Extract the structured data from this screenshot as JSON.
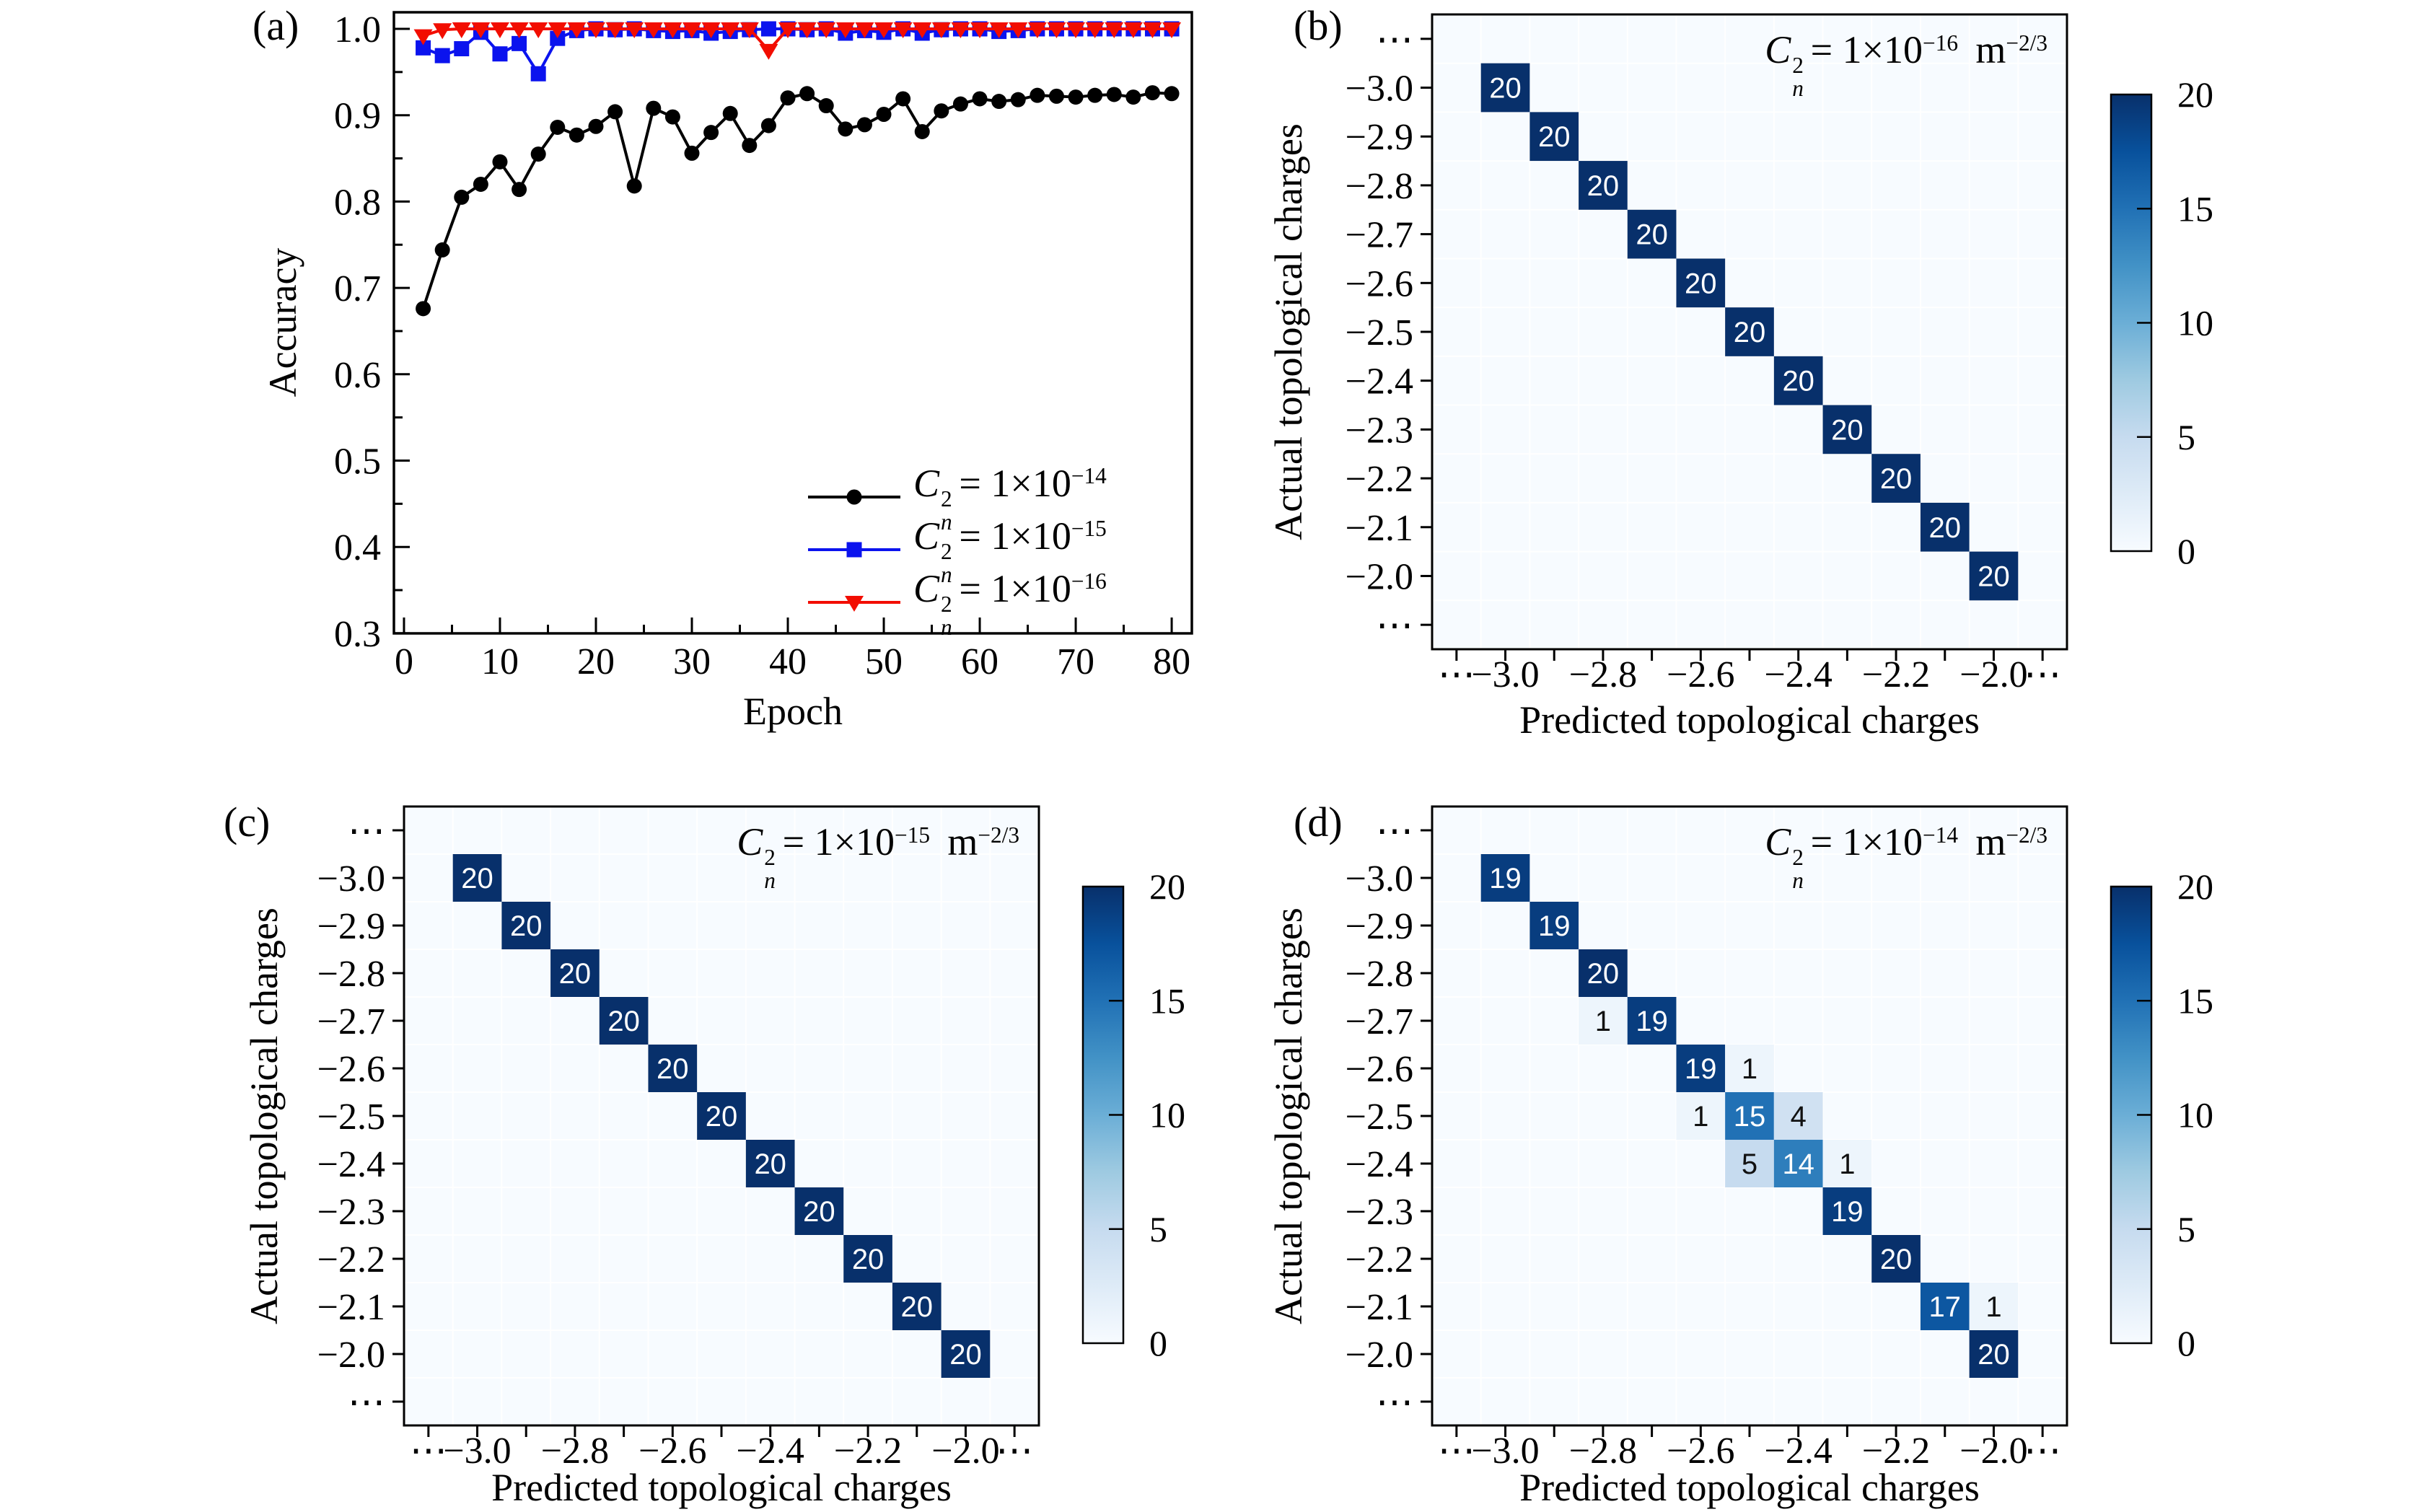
{
  "figure": {
    "background": "#ffffff"
  },
  "panels": {
    "a": {
      "label": "(a)",
      "xlabel": "Epoch",
      "ylabel": "Accuracy"
    },
    "b": {
      "label": "(b)",
      "xlabel": "Predicted topological charges",
      "ylabel": "Actual topological charges"
    },
    "c": {
      "label": "(c)",
      "xlabel": "Predicted topological charges",
      "ylabel": "Actual topological charges"
    },
    "d": {
      "label": "(d)",
      "xlabel": "Predicted topological charges",
      "ylabel": "Actual topological charges"
    }
  },
  "chart_data": [
    {
      "type": "line",
      "panel": "a",
      "xlabel": "Epoch",
      "ylabel": "Accuracy",
      "xlim": [
        -1.05,
        82.1
      ],
      "ylim": [
        0.3,
        1.0192
      ],
      "xticks": [
        0,
        10,
        20,
        30,
        40,
        50,
        60,
        70,
        80
      ],
      "xticks_minor": [
        5,
        15,
        25,
        35,
        45,
        55,
        65,
        75
      ],
      "yticks": [
        0.3,
        0.4,
        0.5,
        0.6,
        0.7,
        0.8,
        0.9,
        1.0
      ],
      "yticks_minor": [
        0.35,
        0.45,
        0.55,
        0.65,
        0.75,
        0.85,
        0.95
      ],
      "grid": false,
      "legend_position": "lower right",
      "x": [
        2,
        4,
        6,
        8,
        10,
        12,
        14,
        16,
        18,
        20,
        22,
        24,
        26,
        28,
        30,
        32,
        34,
        36,
        38,
        40,
        42,
        44,
        46,
        48,
        50,
        52,
        54,
        56,
        58,
        60,
        62,
        64,
        66,
        68,
        70,
        72,
        74,
        76,
        78,
        80
      ],
      "series": [
        {
          "name": "Cn^2 = 1x10^-14",
          "color": "#000000",
          "marker": "circle",
          "math": {
            "base": "C",
            "base_sup": "2",
            "base_sub": "n",
            "body": "= 1×10",
            "exp": "−14"
          },
          "values": [
            0.676,
            0.744,
            0.805,
            0.82,
            0.846,
            0.814,
            0.855,
            0.886,
            0.877,
            0.887,
            0.904,
            0.818,
            0.908,
            0.898,
            0.856,
            0.88,
            0.902,
            0.865,
            0.888,
            0.92,
            0.925,
            0.911,
            0.884,
            0.889,
            0.901,
            0.919,
            0.881,
            0.905,
            0.913,
            0.919,
            0.916,
            0.918,
            0.923,
            0.922,
            0.921,
            0.923,
            0.924,
            0.921,
            0.926,
            0.925
          ]
        },
        {
          "name": "Cn^2 = 1x10^-15",
          "color": "#0b13ee",
          "marker": "square",
          "math": {
            "base": "C",
            "base_sup": "2",
            "base_sub": "n",
            "body": "= 1×10",
            "exp": "−15"
          },
          "values": [
            0.978,
            0.969,
            0.977,
            0.996,
            0.971,
            0.983,
            0.948,
            0.989,
            0.998,
            1.0,
            0.999,
            1.0,
            0.998,
            0.997,
            0.998,
            0.995,
            0.997,
            0.999,
            1.0,
            1.0,
            0.999,
            1.0,
            0.995,
            0.998,
            0.996,
            1.0,
            0.995,
            0.999,
            1.0,
            1.0,
            0.997,
            0.998,
            1.0,
            1.0,
            1.0,
            1.0,
            1.0,
            1.0,
            1.0,
            1.0
          ]
        },
        {
          "name": "Cn^2 = 1x10^-16",
          "color": "#f20d00",
          "marker": "triangle-down",
          "math": {
            "base": "C",
            "base_sup": "2",
            "base_sub": "n",
            "body": "= 1×10",
            "exp": "−16"
          },
          "values": [
            0.992,
            0.999,
            1.0,
            1.0,
            1.0,
            1.0,
            1.0,
            1.0,
            1.0,
            1.0,
            1.0,
            1.0,
            1.0,
            1.0,
            1.0,
            1.0,
            1.0,
            1.0,
            0.975,
            1.0,
            1.0,
            1.0,
            1.0,
            1.0,
            1.0,
            1.0,
            1.0,
            1.0,
            1.0,
            1.0,
            1.0,
            1.0,
            1.0,
            1.0,
            1.0,
            1.0,
            1.0,
            1.0,
            1.0,
            1.0
          ]
        }
      ]
    },
    {
      "type": "heatmap",
      "panel": "b",
      "title": "Cn^2 = 1x10^-16 m^-2/3",
      "title_math": {
        "base": "C",
        "base_sup": "2",
        "base_sub": "n",
        "body": "= 1×10",
        "exp": "−16",
        "unit": "m",
        "unit_exp": "−2/3"
      },
      "xlabel": "Predicted topological charges",
      "ylabel": "Actual topological charges",
      "categories": [
        "⋯",
        "−3.0",
        "−2.9",
        "−2.8",
        "−2.7",
        "−2.6",
        "−2.5",
        "−2.4",
        "−2.3",
        "−2.2",
        "−2.1",
        "−2.0",
        "⋯"
      ],
      "x_ticks_shown": [
        {
          "index": 0,
          "label": "⋯"
        },
        {
          "index": 1,
          "label": "−3.0"
        },
        {
          "index": 3,
          "label": "−2.8"
        },
        {
          "index": 5,
          "label": "−2.6"
        },
        {
          "index": 7,
          "label": "−2.4"
        },
        {
          "index": 9,
          "label": "−2.2"
        },
        {
          "index": 11,
          "label": "−2.0"
        },
        {
          "index": 12,
          "label": "⋯"
        }
      ],
      "vmin": 0,
      "vmax": 20,
      "colormap": "Blues",
      "colorbar_ticks": [
        0,
        5,
        10,
        15,
        20
      ],
      "cells": [
        {
          "row": 1,
          "col": 1,
          "value": 20
        },
        {
          "row": 2,
          "col": 2,
          "value": 20
        },
        {
          "row": 3,
          "col": 3,
          "value": 20
        },
        {
          "row": 4,
          "col": 4,
          "value": 20
        },
        {
          "row": 5,
          "col": 5,
          "value": 20
        },
        {
          "row": 6,
          "col": 6,
          "value": 20
        },
        {
          "row": 7,
          "col": 7,
          "value": 20
        },
        {
          "row": 8,
          "col": 8,
          "value": 20
        },
        {
          "row": 9,
          "col": 9,
          "value": 20
        },
        {
          "row": 10,
          "col": 10,
          "value": 20
        },
        {
          "row": 11,
          "col": 11,
          "value": 20
        }
      ]
    },
    {
      "type": "heatmap",
      "panel": "c",
      "title": "Cn^2 = 1x10^-15 m^-2/3",
      "title_math": {
        "base": "C",
        "base_sup": "2",
        "base_sub": "n",
        "body": "= 1×10",
        "exp": "−15",
        "unit": "m",
        "unit_exp": "−2/3"
      },
      "xlabel": "Predicted topological charges",
      "ylabel": "Actual topological charges",
      "categories": [
        "⋯",
        "−3.0",
        "−2.9",
        "−2.8",
        "−2.7",
        "−2.6",
        "−2.5",
        "−2.4",
        "−2.3",
        "−2.2",
        "−2.1",
        "−2.0",
        "⋯"
      ],
      "x_ticks_shown": [
        {
          "index": 0,
          "label": "⋯"
        },
        {
          "index": 1,
          "label": "−3.0"
        },
        {
          "index": 3,
          "label": "−2.8"
        },
        {
          "index": 5,
          "label": "−2.6"
        },
        {
          "index": 7,
          "label": "−2.4"
        },
        {
          "index": 9,
          "label": "−2.2"
        },
        {
          "index": 11,
          "label": "−2.0"
        },
        {
          "index": 12,
          "label": "⋯"
        }
      ],
      "vmin": 0,
      "vmax": 20,
      "colormap": "Blues",
      "colorbar_ticks": [
        0,
        5,
        10,
        15,
        20
      ],
      "cells": [
        {
          "row": 1,
          "col": 1,
          "value": 20
        },
        {
          "row": 2,
          "col": 2,
          "value": 20
        },
        {
          "row": 3,
          "col": 3,
          "value": 20
        },
        {
          "row": 4,
          "col": 4,
          "value": 20
        },
        {
          "row": 5,
          "col": 5,
          "value": 20
        },
        {
          "row": 6,
          "col": 6,
          "value": 20
        },
        {
          "row": 7,
          "col": 7,
          "value": 20
        },
        {
          "row": 8,
          "col": 8,
          "value": 20
        },
        {
          "row": 9,
          "col": 9,
          "value": 20
        },
        {
          "row": 10,
          "col": 10,
          "value": 20
        },
        {
          "row": 11,
          "col": 11,
          "value": 20
        }
      ]
    },
    {
      "type": "heatmap",
      "panel": "d",
      "title": "Cn^2 = 1x10^-14 m^-2/3",
      "title_math": {
        "base": "C",
        "base_sup": "2",
        "base_sub": "n",
        "body": "= 1×10",
        "exp": "−14",
        "unit": "m",
        "unit_exp": "−2/3"
      },
      "xlabel": "Predicted topological charges",
      "ylabel": "Actual topological charges",
      "categories": [
        "⋯",
        "−3.0",
        "−2.9",
        "−2.8",
        "−2.7",
        "−2.6",
        "−2.5",
        "−2.4",
        "−2.3",
        "−2.2",
        "−2.1",
        "−2.0",
        "⋯"
      ],
      "x_ticks_shown": [
        {
          "index": 0,
          "label": "⋯"
        },
        {
          "index": 1,
          "label": "−3.0"
        },
        {
          "index": 3,
          "label": "−2.8"
        },
        {
          "index": 5,
          "label": "−2.6"
        },
        {
          "index": 7,
          "label": "−2.4"
        },
        {
          "index": 9,
          "label": "−2.2"
        },
        {
          "index": 11,
          "label": "−2.0"
        },
        {
          "index": 12,
          "label": "⋯"
        }
      ],
      "vmin": 0,
      "vmax": 20,
      "colormap": "Blues",
      "colorbar_ticks": [
        0,
        5,
        10,
        15,
        20
      ],
      "cells": [
        {
          "row": 1,
          "col": 1,
          "value": 19
        },
        {
          "row": 2,
          "col": 2,
          "value": 19
        },
        {
          "row": 3,
          "col": 3,
          "value": 20
        },
        {
          "row": 4,
          "col": 3,
          "value": 1
        },
        {
          "row": 4,
          "col": 4,
          "value": 19
        },
        {
          "row": 5,
          "col": 5,
          "value": 19
        },
        {
          "row": 5,
          "col": 6,
          "value": 1
        },
        {
          "row": 6,
          "col": 5,
          "value": 1
        },
        {
          "row": 6,
          "col": 6,
          "value": 15
        },
        {
          "row": 6,
          "col": 7,
          "value": 4
        },
        {
          "row": 7,
          "col": 6,
          "value": 5
        },
        {
          "row": 7,
          "col": 7,
          "value": 14
        },
        {
          "row": 7,
          "col": 8,
          "value": 1
        },
        {
          "row": 8,
          "col": 8,
          "value": 19
        },
        {
          "row": 9,
          "col": 9,
          "value": 20
        },
        {
          "row": 10,
          "col": 10,
          "value": 17
        },
        {
          "row": 10,
          "col": 11,
          "value": 1
        },
        {
          "row": 11,
          "col": 11,
          "value": 20
        }
      ]
    }
  ],
  "colors": {
    "heatmap_min": "#f7fbff",
    "heatmap_max": "#08306b",
    "series_black": "#000000",
    "series_blue": "#0b13ee",
    "series_red": "#f20d00"
  }
}
